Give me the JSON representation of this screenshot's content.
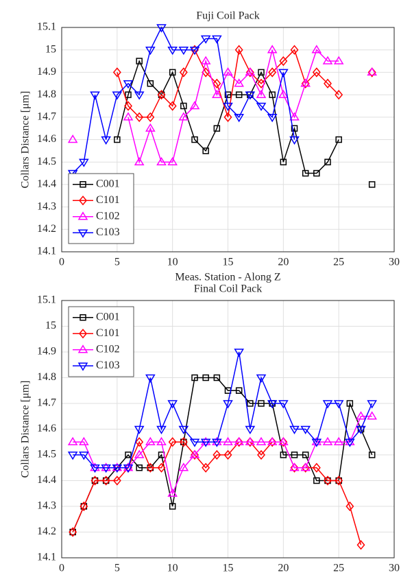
{
  "chart_data": [
    {
      "type": "line",
      "title": "Fuji Coil Pack",
      "x_label": "Meas. Station - Along Z",
      "y_label": "Collars Distance [μm]",
      "x": [
        1,
        2,
        3,
        4,
        5,
        6,
        7,
        8,
        9,
        10,
        11,
        12,
        13,
        14,
        15,
        16,
        17,
        18,
        19,
        20,
        21,
        22,
        23,
        24,
        25,
        26,
        27,
        28
      ],
      "xlim": [
        0,
        30
      ],
      "xticks": [
        0,
        5,
        10,
        15,
        20,
        25,
        30
      ],
      "ylim": [
        14.1,
        15.1
      ],
      "yticks": [
        14.1,
        14.2,
        14.3,
        14.4,
        14.5,
        14.6,
        14.7,
        14.8,
        14.9,
        15,
        15.1
      ],
      "grid": true,
      "legend": "lower left",
      "series": [
        {
          "name": "C001",
          "color": "#000000",
          "marker": "square",
          "values": [
            null,
            null,
            null,
            null,
            14.6,
            14.8,
            14.95,
            14.85,
            14.8,
            14.9,
            14.75,
            14.6,
            14.55,
            14.65,
            14.8,
            14.8,
            14.8,
            14.9,
            14.8,
            14.5,
            14.65,
            14.45,
            14.45,
            14.5,
            14.6,
            null,
            null,
            14.4
          ]
        },
        {
          "name": "C101",
          "color": "#ff0000",
          "marker": "diamond",
          "values": [
            null,
            null,
            null,
            null,
            14.9,
            14.75,
            14.7,
            14.7,
            14.8,
            14.75,
            14.9,
            15.0,
            14.9,
            14.85,
            14.7,
            15.0,
            14.9,
            14.85,
            14.9,
            14.95,
            15.0,
            14.85,
            14.9,
            14.85,
            14.8,
            null,
            null,
            14.9
          ]
        },
        {
          "name": "C102",
          "color": "#ff00ff",
          "marker": "triangle-up",
          "values": [
            14.6,
            null,
            null,
            null,
            null,
            14.7,
            14.5,
            14.65,
            14.5,
            14.5,
            14.7,
            14.75,
            14.95,
            14.8,
            14.9,
            14.85,
            14.9,
            14.8,
            15.0,
            14.8,
            14.7,
            14.85,
            15.0,
            14.95,
            14.95,
            null,
            null,
            14.9
          ]
        },
        {
          "name": "C103",
          "color": "#0000ff",
          "marker": "triangle-down",
          "values": [
            14.45,
            14.5,
            14.8,
            14.6,
            14.8,
            14.85,
            14.8,
            15.0,
            15.1,
            15.0,
            15.0,
            15.0,
            15.05,
            15.05,
            14.75,
            14.7,
            14.8,
            14.75,
            14.7,
            14.9,
            14.6,
            null,
            null,
            null,
            null,
            null,
            null,
            null
          ]
        }
      ]
    },
    {
      "type": "line",
      "title": "Final Coil Pack",
      "x_label": "Meas. Station - Along Z",
      "y_label": "Collars Distance [μm]",
      "x": [
        1,
        2,
        3,
        4,
        5,
        6,
        7,
        8,
        9,
        10,
        11,
        12,
        13,
        14,
        15,
        16,
        17,
        18,
        19,
        20,
        21,
        22,
        23,
        24,
        25,
        26,
        27,
        28
      ],
      "xlim": [
        0,
        30
      ],
      "xticks": [
        0,
        5,
        10,
        15,
        20,
        25,
        30
      ],
      "ylim": [
        14.1,
        15.1
      ],
      "yticks": [
        14.1,
        14.2,
        14.3,
        14.4,
        14.5,
        14.6,
        14.7,
        14.8,
        14.9,
        15,
        15.1
      ],
      "grid": true,
      "legend": "upper left",
      "series": [
        {
          "name": "C001",
          "color": "#000000",
          "marker": "square",
          "values": [
            14.2,
            14.3,
            14.4,
            14.4,
            14.45,
            14.5,
            14.45,
            14.45,
            14.5,
            14.3,
            14.55,
            14.8,
            14.8,
            14.8,
            14.75,
            14.75,
            14.7,
            14.7,
            14.7,
            14.5,
            14.5,
            14.5,
            14.4,
            14.4,
            14.4,
            14.7,
            14.6,
            14.5
          ]
        },
        {
          "name": "C101",
          "color": "#ff0000",
          "marker": "diamond",
          "values": [
            14.2,
            14.3,
            14.4,
            14.4,
            14.4,
            14.45,
            14.55,
            14.45,
            14.45,
            14.55,
            14.55,
            14.5,
            14.45,
            14.5,
            14.5,
            14.55,
            14.55,
            14.5,
            14.55,
            14.55,
            14.45,
            14.45,
            14.45,
            14.4,
            14.4,
            14.3,
            14.15,
            null
          ]
        },
        {
          "name": "C102",
          "color": "#ff00ff",
          "marker": "triangle-up",
          "values": [
            14.55,
            14.55,
            14.45,
            14.45,
            14.45,
            14.45,
            14.5,
            14.55,
            14.55,
            14.35,
            14.45,
            14.5,
            14.55,
            14.55,
            14.55,
            14.55,
            14.55,
            14.55,
            14.55,
            14.55,
            14.45,
            14.45,
            14.55,
            14.55,
            14.55,
            14.55,
            14.65,
            14.65
          ]
        },
        {
          "name": "C103",
          "color": "#0000ff",
          "marker": "triangle-down",
          "values": [
            14.5,
            14.5,
            14.45,
            14.45,
            14.45,
            14.45,
            14.6,
            14.8,
            14.6,
            14.7,
            14.6,
            14.55,
            14.55,
            14.55,
            14.7,
            14.9,
            14.6,
            14.8,
            14.7,
            14.7,
            14.6,
            14.6,
            14.55,
            14.7,
            14.7,
            14.55,
            14.6,
            14.7
          ]
        }
      ]
    }
  ]
}
